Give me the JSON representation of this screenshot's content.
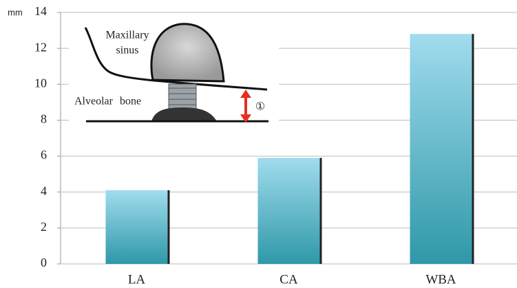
{
  "chart_data": {
    "type": "bar",
    "y_unit": "mm",
    "categories": [
      "LA",
      "CA",
      "WBA"
    ],
    "values": [
      4.1,
      5.9,
      12.8
    ],
    "ylim": [
      0,
      14
    ],
    "yticks": [
      0,
      2,
      4,
      6,
      8,
      10,
      12,
      14
    ],
    "grid": true,
    "inset": {
      "label_top_line1": "Maxillary",
      "label_top_line2": "sinus",
      "label_bottom": "Alveolar bone",
      "marker": "①"
    }
  }
}
